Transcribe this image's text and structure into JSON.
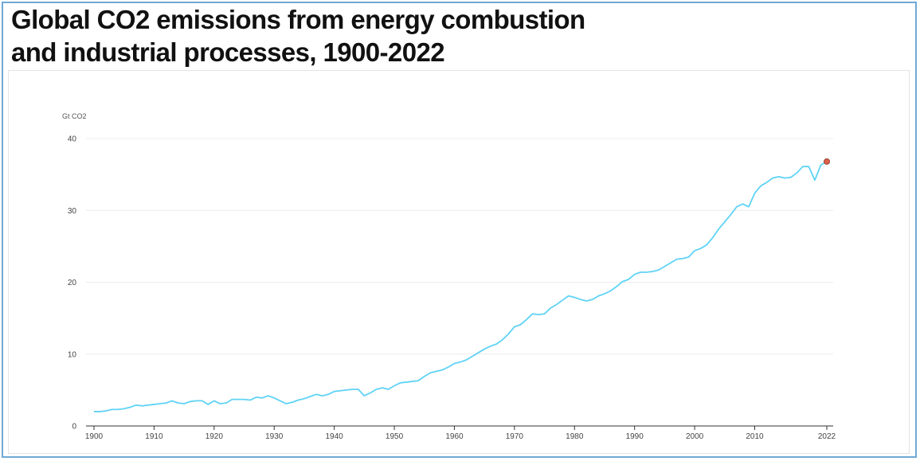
{
  "chart_data": {
    "type": "line",
    "title_lines": [
      "Global CO2 emissions from energy combustion",
      "and industrial processes, 1900-2022"
    ],
    "ylabel": "Gt CO2",
    "xlabel": "",
    "ylim": [
      0,
      40
    ],
    "xlim": [
      1900,
      2022
    ],
    "y_ticks": [
      0,
      10,
      20,
      30,
      40
    ],
    "x_ticks": [
      1900,
      1910,
      1920,
      1930,
      1940,
      1950,
      1960,
      1970,
      1980,
      1990,
      2000,
      2010,
      2022
    ],
    "grid": true,
    "line_color": "#5fd3f5",
    "marker_color": "#e0604a",
    "highlight_point": {
      "x": 2022,
      "y": 36.8
    },
    "series": [
      {
        "x": [
          1900,
          1901,
          1902,
          1903,
          1904,
          1905,
          1906,
          1907,
          1908,
          1909,
          1910,
          1911,
          1912,
          1913,
          1914,
          1915,
          1916,
          1917,
          1918,
          1919,
          1920,
          1921,
          1922,
          1923,
          1924,
          1925,
          1926,
          1927,
          1928,
          1929,
          1930,
          1931,
          1932,
          1933,
          1934,
          1935,
          1936,
          1937,
          1938,
          1939,
          1940,
          1941,
          1942,
          1943,
          1944,
          1945,
          1946,
          1947,
          1948,
          1949,
          1950,
          1951,
          1952,
          1953,
          1954,
          1955,
          1956,
          1957,
          1958,
          1959,
          1960,
          1961,
          1962,
          1963,
          1964,
          1965,
          1966,
          1967,
          1968,
          1969,
          1970,
          1971,
          1972,
          1973,
          1974,
          1975,
          1976,
          1977,
          1978,
          1979,
          1980,
          1981,
          1982,
          1983,
          1984,
          1985,
          1986,
          1987,
          1988,
          1989,
          1990,
          1991,
          1992,
          1993,
          1994,
          1995,
          1996,
          1997,
          1998,
          1999,
          2000,
          2001,
          2002,
          2003,
          2004,
          2005,
          2006,
          2007,
          2008,
          2009,
          2010,
          2011,
          2012,
          2013,
          2014,
          2015,
          2016,
          2017,
          2018,
          2019,
          2020,
          2021,
          2022
        ],
        "y": [
          2.0,
          2.0,
          2.1,
          2.3,
          2.3,
          2.4,
          2.6,
          2.9,
          2.8,
          2.9,
          3.0,
          3.1,
          3.2,
          3.5,
          3.2,
          3.1,
          3.4,
          3.5,
          3.5,
          3.0,
          3.5,
          3.1,
          3.2,
          3.7,
          3.7,
          3.7,
          3.6,
          4.0,
          3.9,
          4.2,
          3.9,
          3.5,
          3.1,
          3.3,
          3.6,
          3.8,
          4.1,
          4.4,
          4.2,
          4.4,
          4.8,
          4.9,
          5.0,
          5.1,
          5.1,
          4.2,
          4.6,
          5.1,
          5.3,
          5.1,
          5.6,
          6.0,
          6.1,
          6.2,
          6.3,
          6.9,
          7.4,
          7.6,
          7.8,
          8.2,
          8.7,
          8.9,
          9.2,
          9.7,
          10.2,
          10.7,
          11.1,
          11.4,
          12.0,
          12.8,
          13.8,
          14.1,
          14.8,
          15.6,
          15.5,
          15.6,
          16.4,
          16.9,
          17.5,
          18.1,
          17.9,
          17.6,
          17.4,
          17.6,
          18.1,
          18.4,
          18.8,
          19.4,
          20.1,
          20.4,
          21.1,
          21.4,
          21.4,
          21.5,
          21.7,
          22.2,
          22.7,
          23.2,
          23.3,
          23.5,
          24.4,
          24.7,
          25.2,
          26.2,
          27.4,
          28.4,
          29.4,
          30.5,
          30.9,
          30.5,
          32.4,
          33.4,
          33.9,
          34.5,
          34.7,
          34.5,
          34.6,
          35.2,
          36.1,
          36.1,
          34.2,
          36.3,
          36.8
        ]
      }
    ]
  }
}
